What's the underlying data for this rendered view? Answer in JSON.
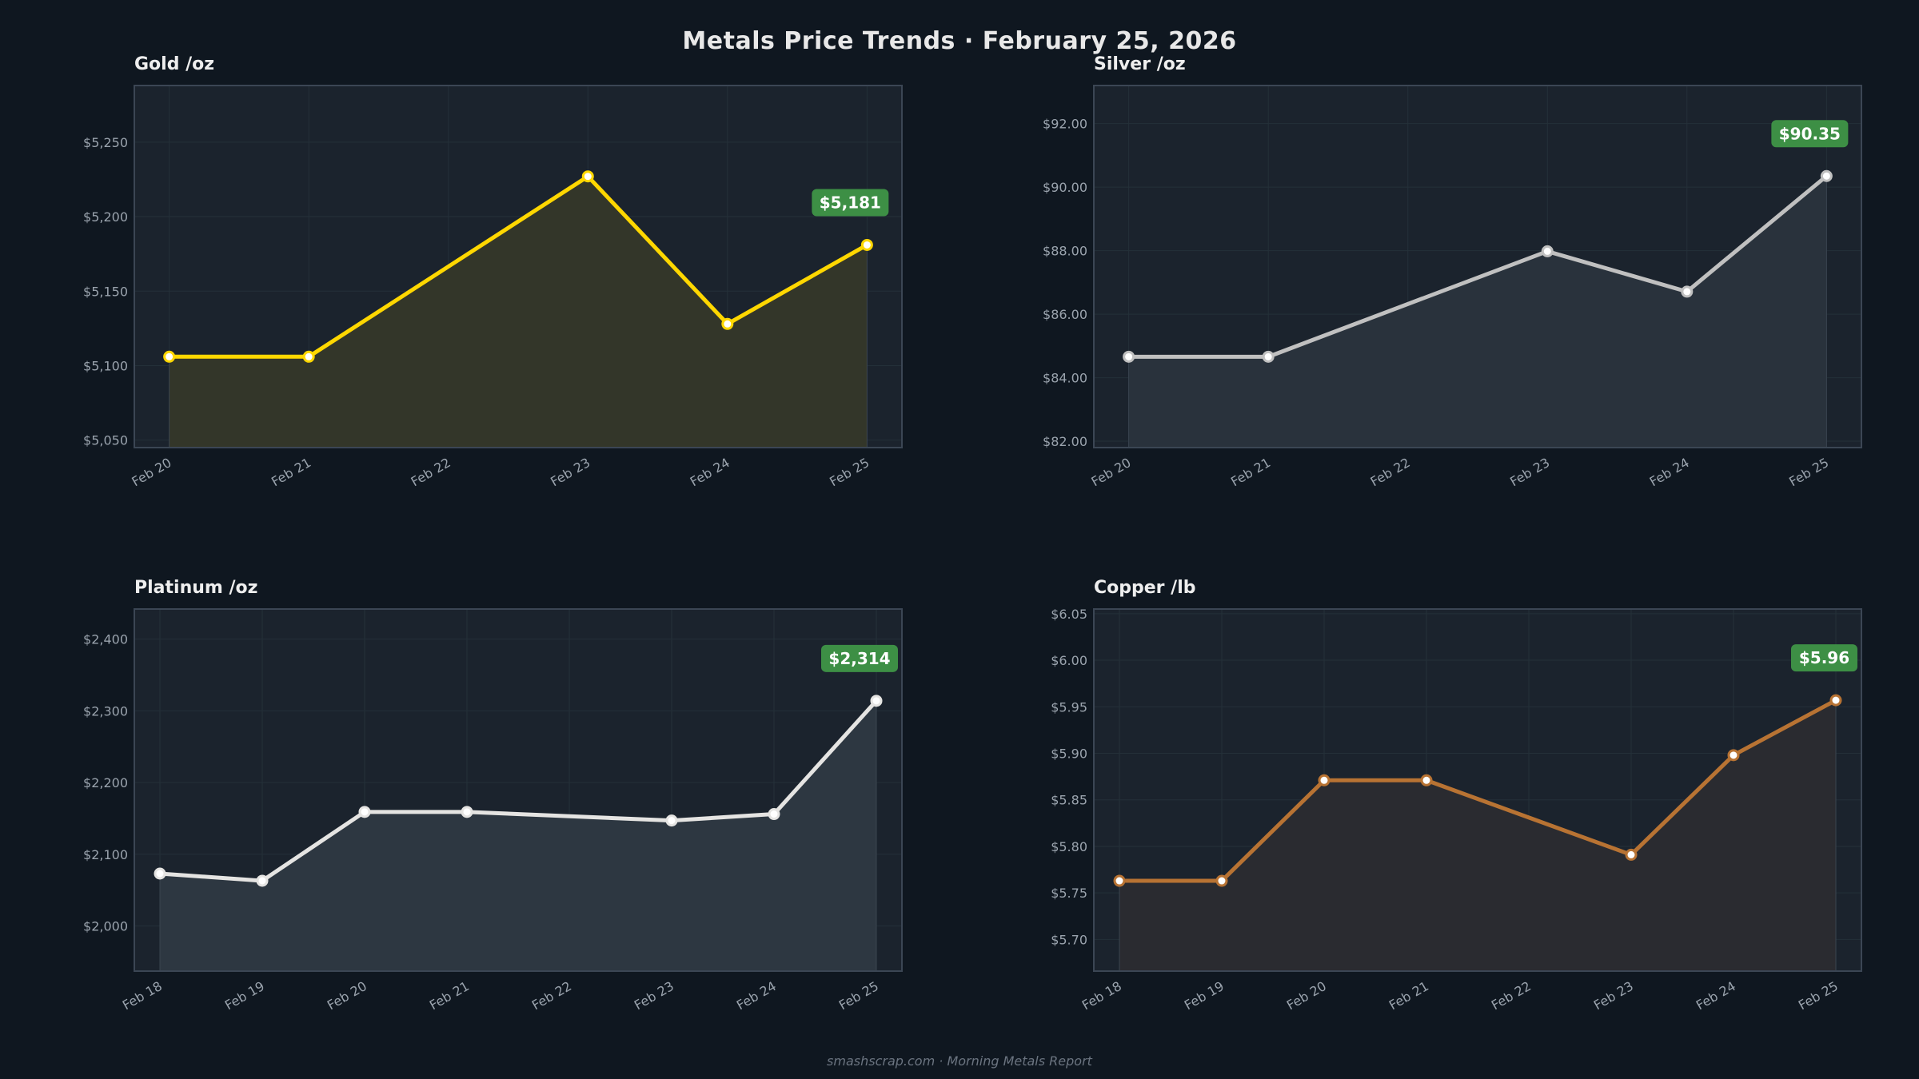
{
  "title": "Metals Price Trends  ·  February 25, 2026",
  "footer": "smashscrap.com  ·  Morning Metals Report",
  "colors": {
    "background": "#0f1720",
    "plot_background": "#1b232d",
    "badge": "#3d8f45"
  },
  "chart_data": [
    {
      "type": "area",
      "title": "Gold  /oz",
      "categories": [
        "Feb 20",
        "Feb 21",
        "Feb 22",
        "Feb 23",
        "Feb 24",
        "Feb 25"
      ],
      "x": [
        "Feb 20",
        "Feb 21",
        "Feb 23",
        "Feb 24",
        "Feb 25"
      ],
      "values": [
        5106,
        5106,
        5227,
        5128,
        5181
      ],
      "yticks": [
        "$5,050",
        "$5,100",
        "$5,150",
        "$5,200",
        "$5,250"
      ],
      "ytick_values": [
        5050,
        5100,
        5150,
        5200,
        5250
      ],
      "ylim": [
        5045,
        5288
      ],
      "latest_label": "$5,181",
      "line_color": "#ffd700",
      "fill_color": "#333629",
      "grid": true
    },
    {
      "type": "area",
      "title": "Silver  /oz",
      "categories": [
        "Feb 20",
        "Feb 21",
        "Feb 22",
        "Feb 23",
        "Feb 24",
        "Feb 25"
      ],
      "x": [
        "Feb 20",
        "Feb 21",
        "Feb 23",
        "Feb 24",
        "Feb 25"
      ],
      "values": [
        84.66,
        84.66,
        87.98,
        86.71,
        90.35
      ],
      "yticks": [
        "$82.00",
        "$84.00",
        "$86.00",
        "$88.00",
        "$90.00",
        "$92.00"
      ],
      "ytick_values": [
        82,
        84,
        86,
        88,
        90,
        92
      ],
      "ylim": [
        81.8,
        93.2
      ],
      "latest_label": "$90.35",
      "line_color": "#c0c0c0",
      "fill_color": "#29323c",
      "grid": true
    },
    {
      "type": "area",
      "title": "Platinum  /oz",
      "categories": [
        "Feb 18",
        "Feb 19",
        "Feb 20",
        "Feb 21",
        "Feb 22",
        "Feb 23",
        "Feb 24",
        "Feb 25"
      ],
      "x": [
        "Feb 18",
        "Feb 19",
        "Feb 20",
        "Feb 21",
        "Feb 23",
        "Feb 24",
        "Feb 25"
      ],
      "values": [
        2073,
        2063,
        2159,
        2159,
        2147,
        2156,
        2314
      ],
      "yticks": [
        "$2,000",
        "$2,100",
        "$2,200",
        "$2,300",
        "$2,400"
      ],
      "ytick_values": [
        2000,
        2100,
        2200,
        2300,
        2400
      ],
      "ylim": [
        1937,
        2442
      ],
      "latest_label": "$2,314",
      "line_color": "#e5e4e2",
      "fill_color": "#2d3741",
      "grid": true
    },
    {
      "type": "area",
      "title": "Copper  /lb",
      "categories": [
        "Feb 18",
        "Feb 19",
        "Feb 20",
        "Feb 21",
        "Feb 22",
        "Feb 23",
        "Feb 24",
        "Feb 25"
      ],
      "x": [
        "Feb 18",
        "Feb 19",
        "Feb 20",
        "Feb 21",
        "Feb 23",
        "Feb 24",
        "Feb 25"
      ],
      "values": [
        5.763,
        5.763,
        5.871,
        5.871,
        5.791,
        5.898,
        5.957
      ],
      "yticks": [
        "$5.70",
        "$5.75",
        "$5.80",
        "$5.85",
        "$5.90",
        "$5.95",
        "$6.00",
        "$6.05"
      ],
      "ytick_values": [
        5.7,
        5.75,
        5.8,
        5.85,
        5.9,
        5.95,
        6.0,
        6.05
      ],
      "ylim": [
        5.666,
        6.055
      ],
      "latest_label": "$5.96",
      "line_color": "#b87333",
      "fill_color": "#2a2b30",
      "grid": true
    }
  ]
}
